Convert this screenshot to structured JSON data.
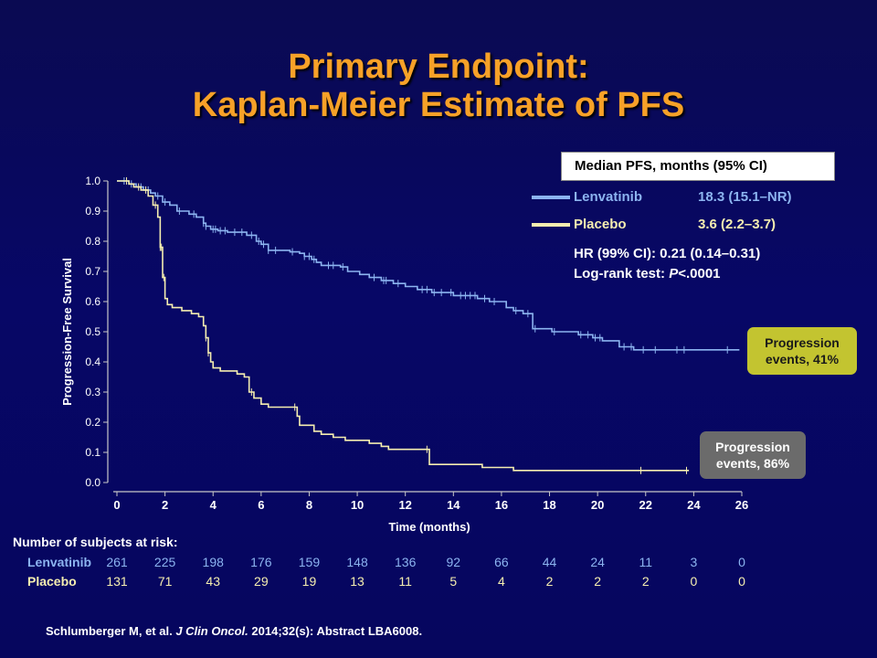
{
  "slide": {
    "title_line1": "Primary Endpoint:",
    "title_line2": "Kaplan-Meier Estimate of PFS"
  },
  "legend": {
    "header": "Median PFS, months (95% CI)",
    "entries": [
      {
        "name": "Lenvatinib",
        "value": "18.3 (15.1–NR)",
        "color": "#8cb4f0"
      },
      {
        "name": "Placebo",
        "value": "3.6 (2.2–3.7)",
        "color": "#f5eeb0"
      }
    ],
    "hr": "HR (99% CI): 0.21 (0.14–0.31)",
    "logrank_prefix": "Log-rank test: ",
    "logrank_p": "P",
    "logrank_suffix": "<.0001"
  },
  "callouts": {
    "lenvatinib_line1": "Progression",
    "lenvatinib_line2": "events, 41%",
    "placebo_line1": "Progression",
    "placebo_line2": "events, 86%"
  },
  "chart_data": {
    "type": "line",
    "title": "Kaplan-Meier Estimate of PFS",
    "xlabel": "Time (months)",
    "ylabel": "Progression-Free Survival",
    "xlim": [
      0,
      26
    ],
    "ylim": [
      0,
      1.0
    ],
    "x_ticks": [
      "0",
      "2",
      "4",
      "6",
      "8",
      "10",
      "12",
      "14",
      "16",
      "18",
      "20",
      "22",
      "24",
      "26"
    ],
    "y_ticks": [
      "0.0",
      "0.1",
      "0.2",
      "0.3",
      "0.4",
      "0.5",
      "0.6",
      "0.7",
      "0.8",
      "0.9",
      "1.0"
    ],
    "grid": false,
    "legend_position": "top-right",
    "series": [
      {
        "name": "Lenvatinib",
        "color": "#8cb4f0",
        "x": [
          0,
          0.5,
          0.8,
          1.1,
          1.4,
          1.6,
          1.9,
          2.2,
          2.5,
          3.0,
          3.3,
          3.6,
          3.7,
          3.9,
          4.2,
          4.6,
          5.4,
          5.8,
          6.0,
          6.3,
          7.2,
          7.6,
          7.8,
          8.1,
          8.3,
          8.5,
          9.3,
          9.6,
          10.1,
          10.5,
          11.0,
          11.5,
          12.0,
          12.5,
          13.1,
          14.0,
          15.0,
          15.5,
          16.2,
          16.5,
          16.9,
          17.3,
          18.1,
          19.2,
          19.8,
          20.2,
          20.9,
          21.5,
          25.9
        ],
        "y": [
          1.0,
          0.99,
          0.98,
          0.97,
          0.96,
          0.95,
          0.93,
          0.92,
          0.9,
          0.89,
          0.88,
          0.86,
          0.85,
          0.84,
          0.835,
          0.83,
          0.82,
          0.8,
          0.79,
          0.77,
          0.765,
          0.76,
          0.75,
          0.74,
          0.73,
          0.72,
          0.715,
          0.7,
          0.69,
          0.68,
          0.67,
          0.66,
          0.65,
          0.64,
          0.63,
          0.62,
          0.61,
          0.6,
          0.58,
          0.57,
          0.56,
          0.51,
          0.5,
          0.49,
          0.48,
          0.47,
          0.45,
          0.44,
          0.44
        ],
        "censor_x": [
          0.3,
          0.6,
          1.0,
          1.3,
          1.7,
          2.0,
          2.6,
          3.2,
          3.6,
          3.7,
          4.0,
          4.1,
          4.3,
          4.5,
          4.9,
          5.2,
          5.6,
          5.9,
          6.1,
          6.3,
          6.6,
          7.3,
          7.8,
          8.0,
          8.2,
          8.8,
          9.0,
          9.4,
          10.7,
          11.1,
          11.2,
          11.7,
          12.7,
          12.9,
          13.2,
          13.5,
          13.9,
          14.3,
          14.5,
          14.7,
          14.9,
          15.3,
          15.7,
          16.6,
          17.1,
          17.4,
          18.2,
          19.3,
          19.6,
          19.9,
          20.1,
          21.1,
          21.4,
          21.9,
          22.4,
          23.3,
          23.6,
          25.4
        ]
      },
      {
        "name": "Placebo",
        "color": "#f5eeb0",
        "x": [
          0,
          0.5,
          0.7,
          1.0,
          1.3,
          1.5,
          1.7,
          1.8,
          1.9,
          2.0,
          2.1,
          2.3,
          2.7,
          3.1,
          3.4,
          3.6,
          3.7,
          3.8,
          3.9,
          4.0,
          4.3,
          5.0,
          5.3,
          5.5,
          5.7,
          6.0,
          6.3,
          7.0,
          7.5,
          7.6,
          8.2,
          8.5,
          9.0,
          9.5,
          10.5,
          11.0,
          11.3,
          12.8,
          13.0,
          15.2,
          16.5,
          23.8
        ],
        "y": [
          1.0,
          0.99,
          0.98,
          0.97,
          0.95,
          0.92,
          0.88,
          0.78,
          0.68,
          0.61,
          0.59,
          0.58,
          0.57,
          0.56,
          0.55,
          0.52,
          0.48,
          0.43,
          0.4,
          0.38,
          0.37,
          0.36,
          0.35,
          0.3,
          0.28,
          0.26,
          0.25,
          0.25,
          0.22,
          0.19,
          0.17,
          0.16,
          0.15,
          0.14,
          0.13,
          0.12,
          0.11,
          0.11,
          0.06,
          0.05,
          0.04,
          0.04
        ],
        "censor_x": [
          0.4,
          0.9,
          1.2,
          1.6,
          1.8,
          1.85,
          1.95,
          3.7,
          3.8,
          5.6,
          7.4,
          12.9,
          21.8,
          23.7
        ]
      }
    ]
  },
  "risk_table": {
    "title": "Number of subjects at risk:",
    "times": [
      0,
      2,
      4,
      6,
      8,
      10,
      12,
      14,
      16,
      18,
      20,
      22,
      24,
      26
    ],
    "rows": [
      {
        "label": "Lenvatinib",
        "color": "#8cb4f0",
        "values": [
          "261",
          "225",
          "198",
          "176",
          "159",
          "148",
          "136",
          "92",
          "66",
          "44",
          "24",
          "11",
          "3",
          "0"
        ]
      },
      {
        "label": "Placebo",
        "color": "#f5eeb0",
        "values": [
          "131",
          "71",
          "43",
          "29",
          "19",
          "13",
          "11",
          "5",
          "4",
          "2",
          "2",
          "2",
          "0",
          "0"
        ]
      }
    ]
  },
  "citation": {
    "authors": "Schlumberger M, et al. ",
    "journal": "J Clin Oncol.",
    "details": " 2014;32(s): Abstract LBA6008."
  }
}
